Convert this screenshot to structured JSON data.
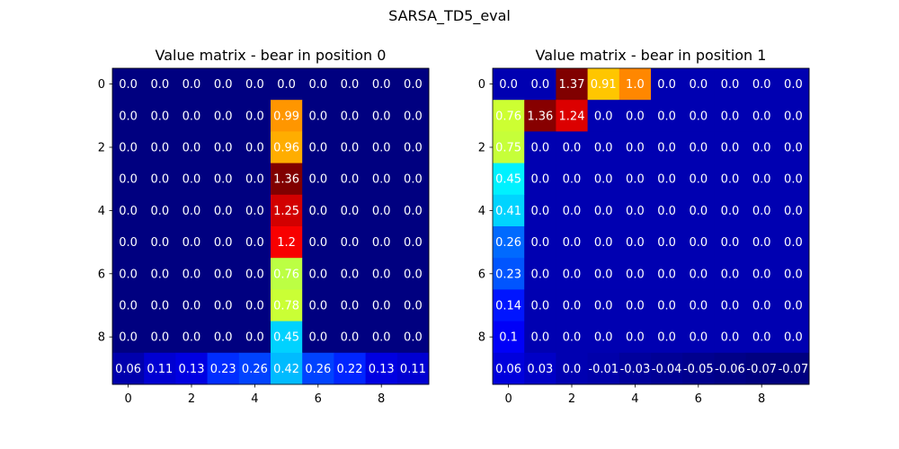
{
  "figure": {
    "suptitle": "SARSA_TD5_eval"
  },
  "colors": {
    "colormap": "jet",
    "cell_text": "#ffffff",
    "frame": "#000000"
  },
  "chart_data": [
    {
      "type": "heatmap",
      "title": "Value matrix - bear in position 0",
      "xlabel": "",
      "ylabel": "",
      "colormap": "jet",
      "xticks": [
        0,
        2,
        4,
        6,
        8
      ],
      "yticks": [
        0,
        2,
        4,
        6,
        8
      ],
      "values": [
        [
          0.0,
          0.0,
          0.0,
          0.0,
          0.0,
          0.0,
          0.0,
          0.0,
          0.0,
          0.0
        ],
        [
          0.0,
          0.0,
          0.0,
          0.0,
          0.0,
          0.99,
          0.0,
          0.0,
          0.0,
          0.0
        ],
        [
          0.0,
          0.0,
          0.0,
          0.0,
          0.0,
          0.96,
          0.0,
          0.0,
          0.0,
          0.0
        ],
        [
          0.0,
          0.0,
          0.0,
          0.0,
          0.0,
          1.36,
          0.0,
          0.0,
          0.0,
          0.0
        ],
        [
          0.0,
          0.0,
          0.0,
          0.0,
          0.0,
          1.25,
          0.0,
          0.0,
          0.0,
          0.0
        ],
        [
          0.0,
          0.0,
          0.0,
          0.0,
          0.0,
          1.2,
          0.0,
          0.0,
          0.0,
          0.0
        ],
        [
          0.0,
          0.0,
          0.0,
          0.0,
          0.0,
          0.76,
          0.0,
          0.0,
          0.0,
          0.0
        ],
        [
          0.0,
          0.0,
          0.0,
          0.0,
          0.0,
          0.78,
          0.0,
          0.0,
          0.0,
          0.0
        ],
        [
          0.0,
          0.0,
          0.0,
          0.0,
          0.0,
          0.45,
          0.0,
          0.0,
          0.0,
          0.0
        ],
        [
          0.06,
          0.11,
          0.13,
          0.23,
          0.26,
          0.42,
          0.26,
          0.22,
          0.13,
          0.11
        ]
      ],
      "labels": [
        [
          "0.0",
          "0.0",
          "0.0",
          "0.0",
          "0.0",
          "0.0",
          "0.0",
          "0.0",
          "0.0",
          "0.0"
        ],
        [
          "0.0",
          "0.0",
          "0.0",
          "0.0",
          "0.0",
          "0.99",
          "0.0",
          "0.0",
          "0.0",
          "0.0"
        ],
        [
          "0.0",
          "0.0",
          "0.0",
          "0.0",
          "0.0",
          "0.96",
          "0.0",
          "0.0",
          "0.0",
          "0.0"
        ],
        [
          "0.0",
          "0.0",
          "0.0",
          "0.0",
          "0.0",
          "1.36",
          "0.0",
          "0.0",
          "0.0",
          "0.0"
        ],
        [
          "0.0",
          "0.0",
          "0.0",
          "0.0",
          "0.0",
          "1.25",
          "0.0",
          "0.0",
          "0.0",
          "0.0"
        ],
        [
          "0.0",
          "0.0",
          "0.0",
          "0.0",
          "0.0",
          "1.2",
          "0.0",
          "0.0",
          "0.0",
          "0.0"
        ],
        [
          "0.0",
          "0.0",
          "0.0",
          "0.0",
          "0.0",
          "0.76",
          "0.0",
          "0.0",
          "0.0",
          "0.0"
        ],
        [
          "0.0",
          "0.0",
          "0.0",
          "0.0",
          "0.0",
          "0.78",
          "0.0",
          "0.0",
          "0.0",
          "0.0"
        ],
        [
          "0.0",
          "0.0",
          "0.0",
          "0.0",
          "0.0",
          "0.45",
          "0.0",
          "0.0",
          "0.0",
          "0.0"
        ],
        [
          "0.06",
          "0.11",
          "0.13",
          "0.23",
          "0.26",
          "0.42",
          "0.26",
          "0.22",
          "0.13",
          "0.11"
        ]
      ]
    },
    {
      "type": "heatmap",
      "title": "Value matrix - bear in position 1",
      "xlabel": "",
      "ylabel": "",
      "colormap": "jet",
      "xticks": [
        0,
        2,
        4,
        6,
        8
      ],
      "yticks": [
        0,
        2,
        4,
        6,
        8
      ],
      "values": [
        [
          0.0,
          0.0,
          1.37,
          0.91,
          1.0,
          0.0,
          0.0,
          0.0,
          0.0,
          0.0
        ],
        [
          0.76,
          1.36,
          1.24,
          0.0,
          0.0,
          0.0,
          0.0,
          0.0,
          0.0,
          0.0
        ],
        [
          0.75,
          0.0,
          0.0,
          0.0,
          0.0,
          0.0,
          0.0,
          0.0,
          0.0,
          0.0
        ],
        [
          0.45,
          0.0,
          0.0,
          0.0,
          0.0,
          0.0,
          0.0,
          0.0,
          0.0,
          0.0
        ],
        [
          0.41,
          0.0,
          0.0,
          0.0,
          0.0,
          0.0,
          0.0,
          0.0,
          0.0,
          0.0
        ],
        [
          0.26,
          0.0,
          0.0,
          0.0,
          0.0,
          0.0,
          0.0,
          0.0,
          0.0,
          0.0
        ],
        [
          0.23,
          0.0,
          0.0,
          0.0,
          0.0,
          0.0,
          0.0,
          0.0,
          0.0,
          0.0
        ],
        [
          0.14,
          0.0,
          0.0,
          0.0,
          0.0,
          0.0,
          0.0,
          0.0,
          0.0,
          0.0
        ],
        [
          0.1,
          0.0,
          0.0,
          0.0,
          0.0,
          0.0,
          0.0,
          0.0,
          0.0,
          0.0
        ],
        [
          0.06,
          0.03,
          0.0,
          -0.01,
          -0.03,
          -0.04,
          -0.05,
          -0.06,
          -0.07,
          -0.07
        ]
      ],
      "labels": [
        [
          "0.0",
          "0.0",
          "1.37",
          "0.91",
          "1.0",
          "0.0",
          "0.0",
          "0.0",
          "0.0",
          "0.0"
        ],
        [
          "0.76",
          "1.36",
          "1.24",
          "0.0",
          "0.0",
          "0.0",
          "0.0",
          "0.0",
          "0.0",
          "0.0"
        ],
        [
          "0.75",
          "0.0",
          "0.0",
          "0.0",
          "0.0",
          "0.0",
          "0.0",
          "0.0",
          "0.0",
          "0.0"
        ],
        [
          "0.45",
          "0.0",
          "0.0",
          "0.0",
          "0.0",
          "0.0",
          "0.0",
          "0.0",
          "0.0",
          "0.0"
        ],
        [
          "0.41",
          "0.0",
          "0.0",
          "0.0",
          "0.0",
          "0.0",
          "0.0",
          "0.0",
          "0.0",
          "0.0"
        ],
        [
          "0.26",
          "0.0",
          "0.0",
          "0.0",
          "0.0",
          "0.0",
          "0.0",
          "0.0",
          "0.0",
          "0.0"
        ],
        [
          "0.23",
          "0.0",
          "0.0",
          "0.0",
          "0.0",
          "0.0",
          "0.0",
          "0.0",
          "0.0",
          "0.0"
        ],
        [
          "0.14",
          "0.0",
          "0.0",
          "0.0",
          "0.0",
          "0.0",
          "0.0",
          "0.0",
          "0.0",
          "0.0"
        ],
        [
          "0.1",
          "0.0",
          "0.0",
          "0.0",
          "0.0",
          "0.0",
          "0.0",
          "0.0",
          "0.0",
          "0.0"
        ],
        [
          "0.06",
          "0.03",
          "0.0",
          "-0.01",
          "-0.03",
          "-0.04",
          "-0.05",
          "-0.06",
          "-0.07",
          "-0.07"
        ]
      ]
    }
  ]
}
